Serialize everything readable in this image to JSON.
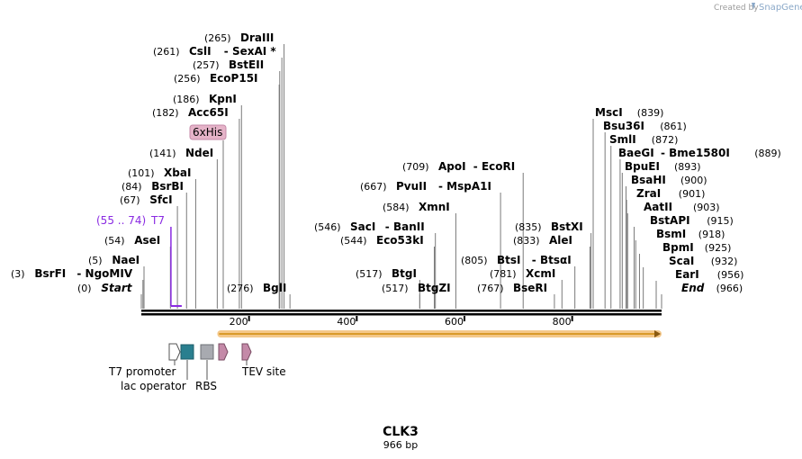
{
  "branding": {
    "created_by": "Created by",
    "brand": "SnapGene"
  },
  "sequence": {
    "name": "CLK3",
    "length_label": "966 bp",
    "length": 966
  },
  "axis": {
    "ticks": [
      200,
      400,
      600,
      800
    ]
  },
  "sites": [
    {
      "pos": 0,
      "name": "Start",
      "italic": true
    },
    {
      "pos": 3,
      "name": "BsrFI",
      "alt": "NgoMIV",
      "numLeft": true
    },
    {
      "pos": 5,
      "name": "NaeI"
    },
    {
      "pos": 54,
      "name": "AseI"
    },
    {
      "pos": 67,
      "name": "SfcI"
    },
    {
      "pos": 84,
      "name": "BsrBI"
    },
    {
      "pos": 101,
      "name": "XbaI"
    },
    {
      "pos": 141,
      "name": "NdeI"
    },
    {
      "pos": 182,
      "name": "Acc65I"
    },
    {
      "pos": 186,
      "name": "KpnI"
    },
    {
      "pos": 256,
      "name": "EcoP15I"
    },
    {
      "pos": 257,
      "name": "BstEII"
    },
    {
      "pos": 261,
      "name": "CslI",
      "alt": "SexAI *"
    },
    {
      "pos": 265,
      "name": "DraIII"
    },
    {
      "pos": 276,
      "name": "BglI"
    },
    {
      "pos": 517,
      "name": "BtgI"
    },
    {
      "pos": 517,
      "name": "BtgZI"
    },
    {
      "pos": 544,
      "name": "Eco53kI"
    },
    {
      "pos": 546,
      "name": "SacI",
      "alt": "BanII"
    },
    {
      "pos": 584,
      "name": "XmnI"
    },
    {
      "pos": 667,
      "name": "PvuII",
      "alt": "MspA1I"
    },
    {
      "pos": 709,
      "name": "ApoI",
      "alt": "EcoRI"
    },
    {
      "pos": 767,
      "name": "BseRI"
    },
    {
      "pos": 781,
      "name": "XcmI"
    },
    {
      "pos": 805,
      "name": "BtsI",
      "alt": "BtsαI"
    },
    {
      "pos": 833,
      "name": "AleI"
    },
    {
      "pos": 835,
      "name": "BstXI"
    },
    {
      "pos": 839,
      "name": "MscI"
    },
    {
      "pos": 861,
      "name": "Bsu36I"
    },
    {
      "pos": 872,
      "name": "SmlI"
    },
    {
      "pos": 889,
      "name": "BaeGI",
      "alt": "Bme1580I"
    },
    {
      "pos": 893,
      "name": "BpuEI"
    },
    {
      "pos": 900,
      "name": "BsaHI"
    },
    {
      "pos": 901,
      "name": "ZraI"
    },
    {
      "pos": 903,
      "name": "AatII"
    },
    {
      "pos": 915,
      "name": "BstAPI"
    },
    {
      "pos": 918,
      "name": "BsmI"
    },
    {
      "pos": 925,
      "name": "BpmI"
    },
    {
      "pos": 932,
      "name": "ScaI"
    },
    {
      "pos": 956,
      "name": "EarI"
    },
    {
      "pos": 966,
      "name": "End",
      "italic": true
    }
  ],
  "primer": {
    "range_label": "(55 .. 74)",
    "name": "T7",
    "start": 55,
    "end": 74
  },
  "orf": {
    "start": 141,
    "end": 966
  },
  "features": [
    {
      "name": "T7 promoter",
      "color": "#ffffff"
    },
    {
      "name": "lac operator",
      "color": "#2a7f8f"
    },
    {
      "name": "RBS",
      "color": "#a8aab0"
    },
    {
      "name": "6xHis",
      "color": "#d9a6bf"
    },
    {
      "name": "TEV site",
      "color": "#c48aa8"
    }
  ],
  "colors": {
    "primer": "#8a2be2",
    "orf_fill": "#f4c88a",
    "orf_line": "#d99a2a",
    "backbone": "#000000",
    "tag_bg": "#e5b3c8"
  }
}
